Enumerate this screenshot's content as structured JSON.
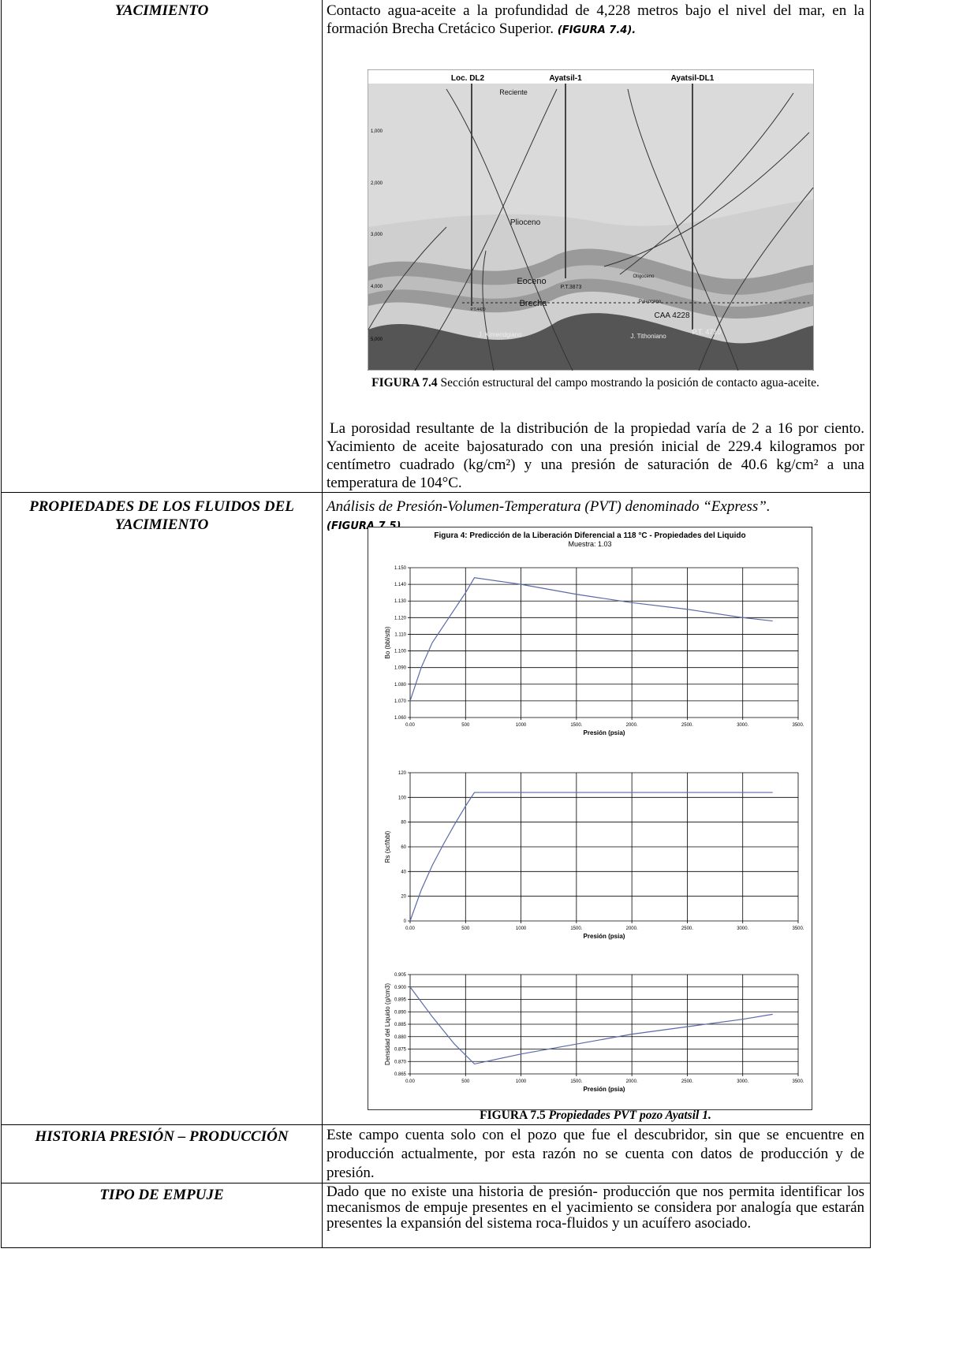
{
  "table": {
    "rows": [
      {
        "label": "YACIMIENTO",
        "text": "Contacto agua-aceite a la profundidad de 4,228 metros bajo el nivel del mar, en la formación Brecha Cretácico Superior.",
        "figure_ref": "(FIGURA 7.4).",
        "figure": {
          "wells": [
            "Loc. DL2",
            "Ayatsil-1",
            "Ayatsil-DL1"
          ],
          "depths": [
            "1,000",
            "2,000",
            "3,000",
            "4,000",
            "5,000"
          ],
          "formations": [
            "Reciente",
            "Plioceno",
            "Eoceno",
            "Brecha",
            "J. Kimeridgiano",
            "Oligoceno",
            "Paleoceno",
            "J. Tithoniano"
          ],
          "annotations": [
            "P.T.3873",
            "CAA 4228",
            "P.T. 4710",
            "P.T.4420"
          ]
        },
        "caption_label": "FIGURA 7.4",
        "caption_text": "Sección estructural del campo mostrando la posición de contacto agua-aceite.",
        "text_after": "La porosidad resultante de la distribución de la propiedad varía de 2 a 16 por ciento. Yacimiento de aceite bajosaturado con una presión inicial de 229.4 kilogramos por centímetro cuadrado (kg/cm²) y una presión de saturación de 40.6 kg/cm² a una temperatura de 104°C."
      },
      {
        "label": "PROPIEDADES DE LOS FLUIDOS DEL YACIMIENTO",
        "text": "Análisis de Presión-Volumen-Temperatura (PVT) denominado “Express”.",
        "figure_ref": "(FIGURA 7.5).",
        "figure": {
          "title": "Figura 4:  Predicción de la Liberación Diferencial a 118 °C - Propiedades del Liquido",
          "subtitle": "Muestra: 1.03",
          "chart_data": [
            {
              "type": "line",
              "ylabel": "Bo (bbl/stb)",
              "xlabel": "Presión (psia)",
              "color": "#5a6aa8",
              "xlim": [
                0,
                3500
              ],
              "xticks": [
                {
                  "value": 0,
                  "label": "0.00"
                },
                500,
                1000,
                {
                  "value": 1500,
                  "label": "1500."
                },
                {
                  "value": 2000,
                  "label": "2000."
                },
                {
                  "value": 2500,
                  "label": "2500."
                },
                {
                  "value": 3000,
                  "label": "3000."
                },
                {
                  "value": 3500,
                  "label": "3500."
                }
              ],
              "ylim": [
                1.06,
                1.15
              ],
              "yticks": [
                {
                  "value": 1.06,
                  "label": "1.060"
                },
                {
                  "value": 1.07,
                  "label": "1.070"
                },
                {
                  "value": 1.08,
                  "label": "1.080"
                },
                {
                  "value": 1.09,
                  "label": "1.090"
                },
                {
                  "value": 1.1,
                  "label": "1.100"
                },
                {
                  "value": 1.11,
                  "label": "1.110"
                },
                {
                  "value": 1.12,
                  "label": "1.120"
                },
                {
                  "value": 1.13,
                  "label": "1.130"
                },
                {
                  "value": 1.14,
                  "label": "1.140"
                },
                {
                  "value": 1.15,
                  "label": "1.150"
                }
              ],
              "x": [
                0,
                100,
                200,
                350,
                500,
                580,
                1000,
                1500,
                2000,
                2500,
                3000,
                3270
              ],
              "values": [
                1.07,
                1.09,
                1.105,
                1.12,
                1.135,
                1.144,
                1.14,
                1.134,
                1.129,
                1.125,
                1.12,
                1.118
              ]
            },
            {
              "type": "line",
              "ylabel": "Rs (scf/bbl)",
              "xlabel": "Presión (psia)",
              "color": "#5a6aa8",
              "xlim": [
                0,
                3500
              ],
              "xticks": [
                {
                  "value": 0,
                  "label": "0.00"
                },
                500,
                1000,
                {
                  "value": 1500,
                  "label": "1500."
                },
                {
                  "value": 2000,
                  "label": "2000."
                },
                {
                  "value": 2500,
                  "label": "2500."
                },
                {
                  "value": 3000,
                  "label": "3000."
                },
                {
                  "value": 3500,
                  "label": "3500."
                }
              ],
              "ylim": [
                0,
                120
              ],
              "yticks": [
                0,
                20,
                40,
                60,
                80,
                100,
                120
              ],
              "x": [
                0,
                100,
                200,
                300,
                400,
                500,
                580,
                3270
              ],
              "values": [
                0,
                25,
                45,
                62,
                78,
                93,
                104,
                104
              ]
            },
            {
              "type": "line",
              "ylabel": "Densidad del Liquido (g/cm3)",
              "xlabel": "Presión (psia)",
              "color": "#5a6aa8",
              "xlim": [
                0,
                3500
              ],
              "xticks": [
                {
                  "value": 0,
                  "label": "0.00"
                },
                500,
                1000,
                {
                  "value": 1500,
                  "label": "1500."
                },
                {
                  "value": 2000,
                  "label": "2000."
                },
                {
                  "value": 2500,
                  "label": "2500."
                },
                {
                  "value": 3000,
                  "label": "3000."
                },
                {
                  "value": 3500,
                  "label": "3500."
                }
              ],
              "ylim": [
                0.865,
                0.905
              ],
              "yticks": [
                0.865,
                {
                  "value": 0.87,
                  "label": "0.870"
                },
                0.875,
                {
                  "value": 0.88,
                  "label": "0.880"
                },
                0.885,
                {
                  "value": 0.89,
                  "label": "0.890"
                },
                0.895,
                {
                  "value": 0.9,
                  "label": "0.900"
                },
                0.905
              ],
              "x": [
                0,
                200,
                400,
                580,
                1000,
                1500,
                2000,
                2500,
                3000,
                3270
              ],
              "values": [
                0.9,
                0.888,
                0.877,
                0.869,
                0.873,
                0.877,
                0.881,
                0.884,
                0.887,
                0.889
              ]
            }
          ]
        },
        "caption_label": "FIGURA 7.5",
        "caption_text": "Propiedades PVT pozo Ayatsil 1."
      },
      {
        "label": "HISTORIA PRESIÓN – PRODUCCIÓN",
        "text": "Este campo cuenta solo con el pozo que fue el descubridor, sin que se encuentre en producción actualmente, por esta razón no se cuenta con datos de producción y de presión."
      },
      {
        "label": "TIPO DE EMPUJE",
        "text": "Dado que no existe una historia de presión- producción que nos permita identificar los mecanismos de empuje presentes en el yacimiento se considera por analogía que estarán presentes la expansión del sistema roca-fluidos y un acuífero asociado."
      }
    ]
  }
}
